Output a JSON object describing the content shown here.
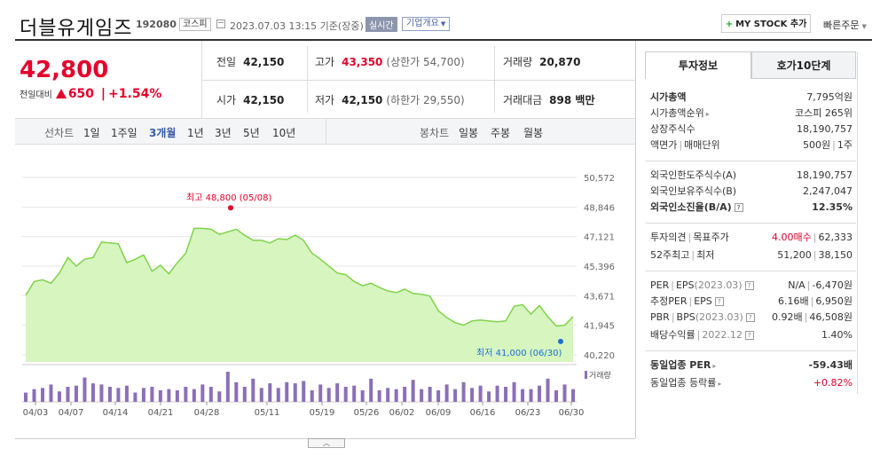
{
  "header": {
    "name": "더블유게임즈",
    "code": "192080",
    "market": "코스피",
    "datetime": "2023.07.03 13:15 기준(장중)",
    "realtime": "실시간",
    "corp_info": "기업개요",
    "mystock": "MY STOCK 추가",
    "quick_order": "빠른주문"
  },
  "quote": {
    "price": "42,800",
    "change_label": "전일대비",
    "change": "650",
    "change_pct": "+1.54%",
    "prev_label": "전일",
    "prev": "42,150",
    "high_label": "고가",
    "high": "43,350",
    "upper_limit": "(상한가 54,700)",
    "volume_label": "거래량",
    "volume": "20,870",
    "open_label": "시가",
    "open": "42,150",
    "low_label": "저가",
    "low": "42,150",
    "lower_limit": "(하한가 29,550)",
    "amount_label": "거래대금",
    "amount": "898 백만"
  },
  "chart_tabs": {
    "line_label": "선차트",
    "periods": [
      "1일",
      "1주일",
      "3개월",
      "1년",
      "3년",
      "5년",
      "10년"
    ],
    "active_period": "3개월",
    "candle_label": "봉차트",
    "candles": [
      "일봉",
      "주봉",
      "월봉"
    ]
  },
  "chart_data": {
    "type": "area",
    "y_ticks": [
      "50,572",
      "48,846",
      "47,121",
      "45,396",
      "43,671",
      "41,945",
      "40,220"
    ],
    "ylim": [
      40220,
      50572
    ],
    "x_ticks": [
      "04/03",
      "04/07",
      "04/14",
      "04/21",
      "04/28",
      "05/11",
      "05/19",
      "05/26",
      "06/02",
      "06/09",
      "06/16",
      "06/23",
      "06/30"
    ],
    "max_label": "최고 48,800 (05/08)",
    "min_label": "최저 41,000 (06/30)",
    "volume_label": "거래량",
    "values": [
      43700,
      44500,
      44600,
      44400,
      45000,
      45900,
      45400,
      45800,
      45900,
      46800,
      46750,
      46700,
      45600,
      45800,
      46050,
      45100,
      45450,
      44950,
      45600,
      46150,
      47600,
      47600,
      47550,
      47250,
      47400,
      47550,
      47200,
      46900,
      46900,
      46750,
      47000,
      46950,
      47200,
      46900,
      46150,
      45800,
      45400,
      45000,
      44900,
      44500,
      44250,
      44400,
      44150,
      43950,
      43850,
      44050,
      43800,
      43750,
      43650,
      42800,
      42400,
      42100,
      41950,
      42200,
      42250,
      42200,
      42150,
      42200,
      43050,
      43150,
      42600,
      43100,
      42450,
      41900,
      41950,
      42450
    ],
    "volumes": [
      8,
      11,
      12,
      15,
      9,
      13,
      14,
      21,
      16,
      15,
      13,
      12,
      14,
      8,
      12,
      13,
      10,
      11,
      10,
      13,
      11,
      15,
      13,
      9,
      26,
      17,
      13,
      20,
      12,
      16,
      12,
      17,
      16,
      18,
      10,
      15,
      12,
      16,
      13,
      14,
      10,
      20,
      10,
      12,
      11,
      13,
      19,
      11,
      13,
      10,
      15,
      11,
      17,
      12,
      14,
      9,
      14,
      13,
      17,
      11,
      11,
      14,
      20,
      10,
      15,
      11
    ]
  },
  "invest": {
    "tab1": "투자정보",
    "tab2": "호가10단계",
    "rows1": [
      {
        "k": "시가총액",
        "v": "7,795억원"
      },
      {
        "k": "시가총액순위",
        "v": "코스피 265위"
      },
      {
        "k": "상장주식수",
        "v": "18,190,757"
      },
      {
        "k": "액면가",
        "k2": "매매단위",
        "v": "500원",
        "v2": "1주"
      }
    ],
    "rows2": [
      {
        "k": "외국인한도주식수(A)",
        "v": "18,190,757"
      },
      {
        "k": "외국인보유주식수(B)",
        "v": "2,247,047"
      },
      {
        "k": "외국인소진율(B/A)",
        "v": "12.35%"
      }
    ],
    "rows3": [
      {
        "k": "투자의견",
        "k2": "목표주가",
        "v": "4.00매수",
        "v2": "62,333"
      },
      {
        "k": "52주최고",
        "k2": "최저",
        "v": "51,200",
        "v2": "38,150"
      }
    ],
    "rows4": [
      {
        "k": "PER",
        "k2": "EPS",
        "k3": "(2023.03)",
        "v": "N/A",
        "v2": "-6,470원"
      },
      {
        "k": "추정PER",
        "k2": "EPS",
        "v": "6.16배",
        "v2": "6,950원"
      },
      {
        "k": "PBR",
        "k2": "BPS",
        "k3": "(2023.03)",
        "v": "0.92배",
        "v2": "46,508원"
      },
      {
        "k": "배당수익률",
        "k2": "2022.12",
        "v": "1.40%"
      }
    ],
    "rows5": [
      {
        "k": "동일업종 PER",
        "v": "-59.43배"
      },
      {
        "k": "동일업종 등락률",
        "v": "+0.82%"
      }
    ]
  }
}
